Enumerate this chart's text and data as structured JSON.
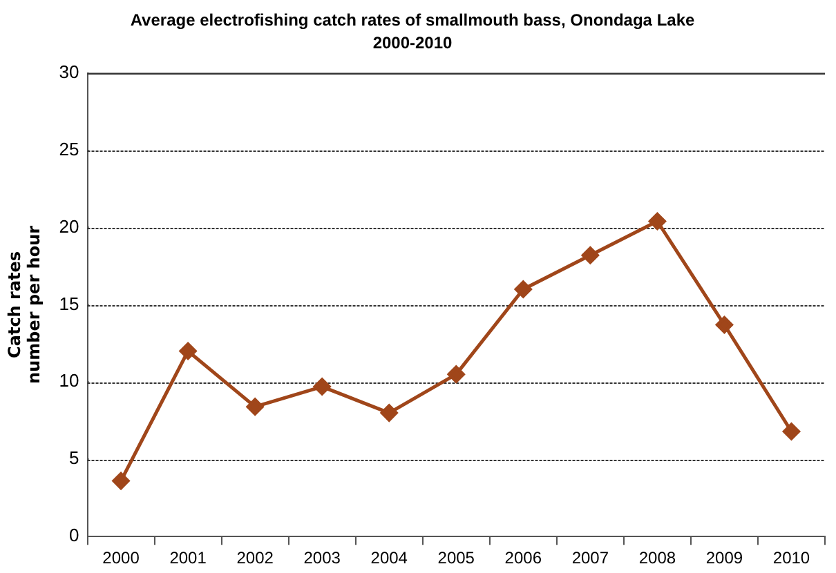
{
  "chart_data": {
    "type": "line",
    "title": "Average electrofishing catch rates of smallmouth bass, Onondaga Lake",
    "subtitle": "2000-2010",
    "ylabel": "Catch rates\nnumber per hour",
    "categories": [
      "2000",
      "2001",
      "2002",
      "2003",
      "2004",
      "2005",
      "2006",
      "2007",
      "2008",
      "2009",
      "2010"
    ],
    "series": [
      {
        "color": "#a0461a",
        "values": [
          3.6,
          12.0,
          8.4,
          9.7,
          8.0,
          10.5,
          16.0,
          18.2,
          20.4,
          13.7,
          6.8
        ]
      }
    ],
    "ylim": [
      0,
      30
    ],
    "yticks": [
      0,
      5,
      10,
      15,
      20,
      25,
      30
    ],
    "grid": "y",
    "legend": false,
    "marker": "diamond",
    "line_style": "solid"
  }
}
